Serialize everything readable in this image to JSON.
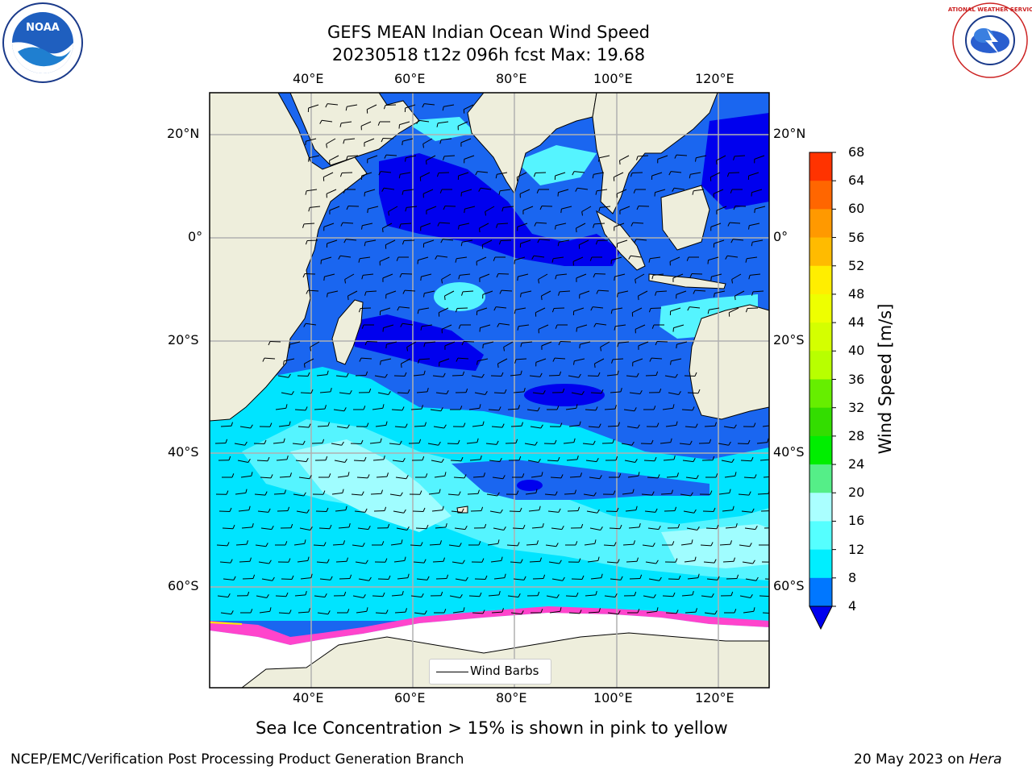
{
  "header": {
    "title_line1": "GEFS MEAN Indian Ocean Wind Speed",
    "title_line2": "20230518 t12z 096h fcst   Max: 19.68"
  },
  "logos": {
    "noaa_text": "NOAA",
    "nws_text": "NATIONAL WEATHER SERVICE"
  },
  "map": {
    "lon_ticks_top": [
      "40°E",
      "60°E",
      "80°E",
      "100°E",
      "120°E"
    ],
    "lon_ticks_bottom": [
      "40°E",
      "60°E",
      "80°E",
      "100°E",
      "120°E"
    ],
    "lat_ticks_left": [
      "20°N",
      "0°",
      "20°S",
      "40°S",
      "60°S"
    ],
    "lat_ticks_right": [
      "20°N",
      "0°",
      "20°S",
      "40°S",
      "60°S"
    ],
    "legend_label": "Wind Barbs",
    "colors": {
      "land": "#eeeedc",
      "ice": "#ffffff",
      "gridline": "#b0b0b0"
    }
  },
  "colorbar": {
    "label": "Wind Speed [m/s]",
    "tick_labels": [
      "68",
      "64",
      "60",
      "56",
      "52",
      "48",
      "44",
      "40",
      "36",
      "32",
      "28",
      "24",
      "20",
      "16",
      "12",
      "8",
      "4"
    ],
    "colors": [
      "#ff0000",
      "#ff3300",
      "#ff6600",
      "#ff9900",
      "#ffbb00",
      "#ffee00",
      "#eeff00",
      "#d4ff00",
      "#b8ff00",
      "#66ee00",
      "#33dd00",
      "#00ee00",
      "#55ee88",
      "#aaffff",
      "#55ffff",
      "#00eeff",
      "#0077ff"
    ],
    "extend_color": "#0000ee"
  },
  "footer": {
    "sea_ice_note": "Sea Ice Concentration > 15% is shown in pink to yellow",
    "credit": "NCEP/EMC/Verification Post Processing Product Generation Branch",
    "date_prefix": "20 May 2023 on ",
    "machine": "Hera"
  }
}
